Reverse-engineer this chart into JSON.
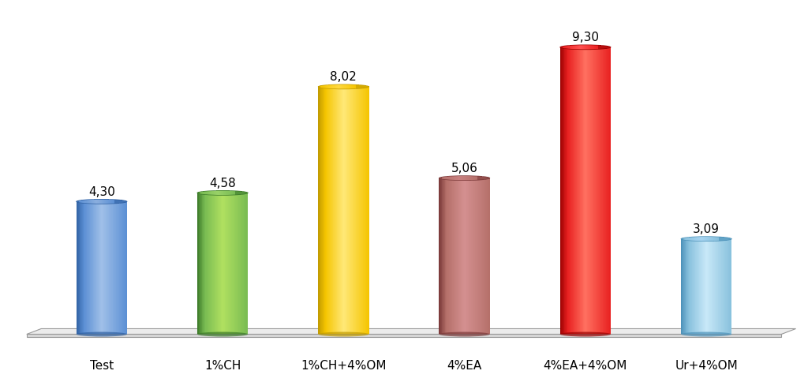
{
  "categories": [
    "Test",
    "1%CH",
    "1%CH+4%OM",
    "4%EA",
    "4%EA+4%OM",
    "Ur+4%OM"
  ],
  "values": [
    4.3,
    4.58,
    8.02,
    5.06,
    9.3,
    3.09
  ],
  "bar_colors_main": [
    "#5B8FD4",
    "#78BB52",
    "#F5C500",
    "#B5706A",
    "#E82020",
    "#87C0DC"
  ],
  "bar_colors_dark": [
    "#2E5FA0",
    "#3A7828",
    "#C09A00",
    "#7A3838",
    "#980000",
    "#4A90B8"
  ],
  "bar_colors_light": [
    "#A0C0E8",
    "#B0E060",
    "#FFE878",
    "#D49090",
    "#FF7060",
    "#C8E8F8"
  ],
  "bar_colors_top_center": [
    "#8AAEDE",
    "#98D068",
    "#FFD840",
    "#C88080",
    "#FF5050",
    "#A8D4F0"
  ],
  "labels": [
    "4,30",
    "4,58",
    "8,02",
    "5,06",
    "9,30",
    "3,09"
  ],
  "background_color": "#FFFFFF",
  "ylim": [
    0,
    10.5
  ],
  "figsize": [
    10.24,
    4.85
  ],
  "dpi": 100,
  "bar_width": 0.42,
  "ellipse_aspect": 0.13
}
